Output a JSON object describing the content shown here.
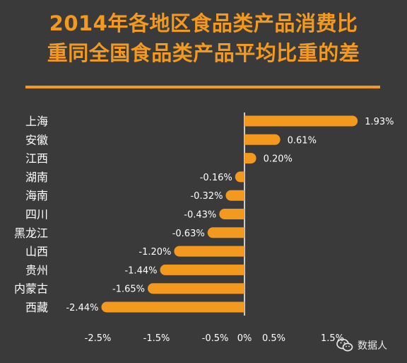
{
  "title_line1": "2014年各地区食品类产品消费比",
  "title_line2": "重同全国食品类产品平均比重的差",
  "watermark": "数据人",
  "colors": {
    "bar": "#f39a1e",
    "background": "#3a3a3a",
    "text": "#ffffff"
  },
  "chart_data": {
    "type": "bar",
    "orientation": "horizontal",
    "title": "2014年各地区食品类产品消费比重同全国食品类产品平均比重的差",
    "categories": [
      "上海",
      "安徽",
      "江西",
      "湖南",
      "海南",
      "四川",
      "黑龙江",
      "山西",
      "贵州",
      "内蒙古",
      "西藏"
    ],
    "values": [
      1.93,
      0.61,
      0.2,
      -0.16,
      -0.32,
      -0.43,
      -0.63,
      -1.2,
      -1.44,
      -1.65,
      -2.44
    ],
    "value_labels": [
      "1.93%",
      "0.61%",
      "0.20%",
      "-0.16%",
      "-0.32%",
      "-0.43%",
      "-0.63%",
      "-1.20%",
      "-1.44%",
      "-1.65%",
      "-2.44%"
    ],
    "xticks": [
      -2.5,
      -1.5,
      -0.5,
      0,
      0.5,
      1.5
    ],
    "xtick_labels": [
      "-2.5%",
      "-1.5%",
      "-0.5%",
      "0%",
      "0.5%",
      "1.5%"
    ],
    "xlim": [
      -3.2,
      2.2
    ],
    "grid": false,
    "legend": "none"
  }
}
